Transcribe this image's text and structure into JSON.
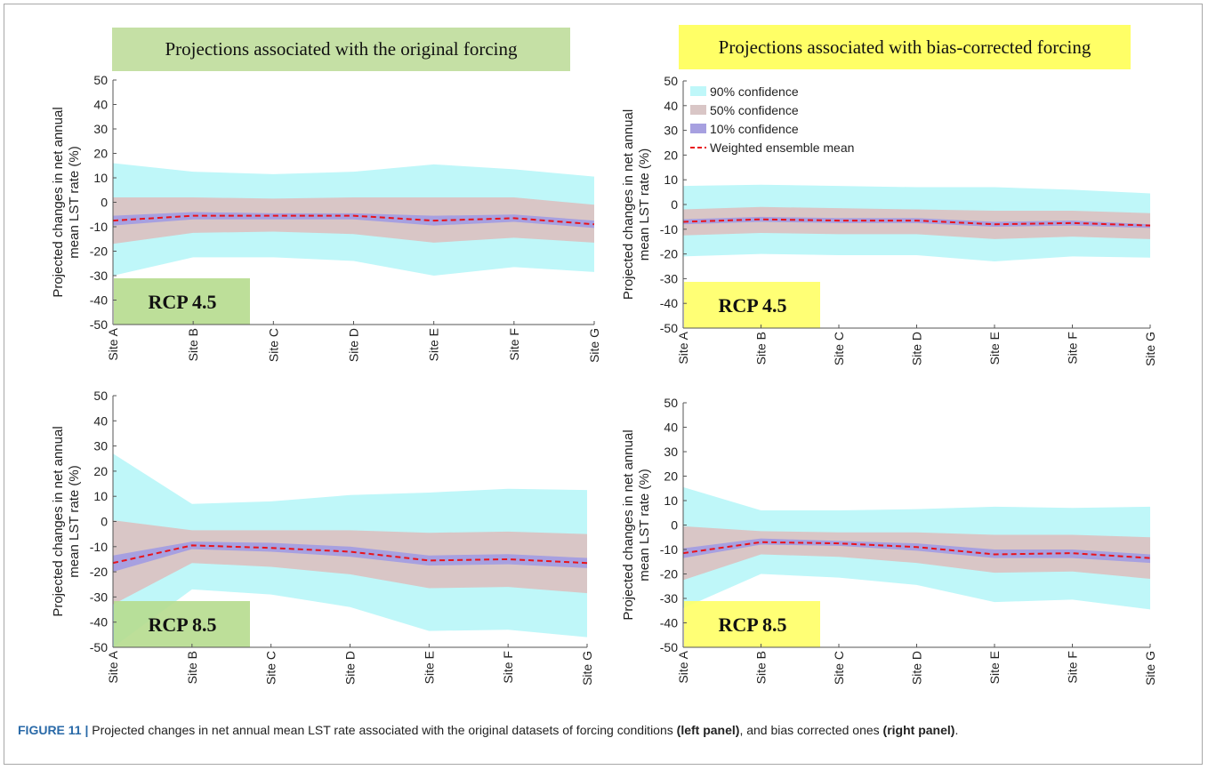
{
  "headers": {
    "left": "Projections associated with the original forcing",
    "right": "Projections associated with bias-corrected forcing"
  },
  "ylabel_line1": "Projected changes in net annual",
  "ylabel_line2": "mean LST rate (%)",
  "colors": {
    "c90": "#bff7f9",
    "c50": "#d9c6c6",
    "c10": "#a7a0e0",
    "mean": "#e8141c",
    "rcp_left": "#b6db8e",
    "rcp_right": "#ffff66"
  },
  "legend": [
    "90% confidence",
    "50% confidence",
    "10% confidence",
    "Weighted ensemble mean"
  ],
  "chart_data": [
    {
      "id": "tl",
      "type": "area",
      "rcp_label": "RCP 4.5",
      "rcp_color": "rcp_left",
      "categories": [
        "Site A",
        "Site B",
        "Site C",
        "Site D",
        "Site E",
        "Site F",
        "Site G"
      ],
      "ylim": [
        -50,
        50
      ],
      "yticks": [
        -50,
        -40,
        -30,
        -20,
        -10,
        0,
        10,
        20,
        30,
        40,
        50
      ],
      "band90": {
        "upper": [
          16,
          12.5,
          11.5,
          12.5,
          15.5,
          13.5,
          10.5
        ],
        "lower": [
          -30,
          -22.5,
          -22.5,
          -24,
          -30,
          -26.5,
          -28.5
        ]
      },
      "band50": {
        "upper": [
          2,
          2,
          1.5,
          2,
          2,
          2,
          -1
        ],
        "lower": [
          -17,
          -12.5,
          -12,
          -13,
          -16.5,
          -14.5,
          -16.5
        ]
      },
      "band10": {
        "upper": [
          -5.5,
          -4,
          -4.5,
          -4.5,
          -5.5,
          -5,
          -7.5
        ],
        "lower": [
          -9.5,
          -7,
          -7,
          -7,
          -9.5,
          -8,
          -10.5
        ]
      },
      "mean": [
        -7.5,
        -5.5,
        -5.5,
        -5.5,
        -7.5,
        -6.5,
        -9
      ]
    },
    {
      "id": "tr",
      "type": "area",
      "rcp_label": "RCP 4.5",
      "rcp_color": "rcp_right",
      "show_legend": true,
      "categories": [
        "Site A",
        "Site B",
        "Site C",
        "Site D",
        "Site E",
        "Site F",
        "Site G"
      ],
      "ylim": [
        -50,
        50
      ],
      "yticks": [
        -50,
        -40,
        -30,
        -20,
        -10,
        0,
        10,
        20,
        30,
        40,
        50
      ],
      "band90": {
        "upper": [
          7.5,
          8,
          7.5,
          7,
          7,
          6,
          4.5
        ],
        "lower": [
          -21,
          -20,
          -20.5,
          -20.5,
          -23,
          -21,
          -21.5
        ]
      },
      "band50": {
        "upper": [
          -2,
          -1,
          -1.5,
          -2,
          -2.5,
          -2.5,
          -3.5
        ],
        "lower": [
          -12.5,
          -11.5,
          -12,
          -12,
          -14,
          -13,
          -14
        ]
      },
      "band10": {
        "upper": [
          -6,
          -5,
          -5.5,
          -5.5,
          -7,
          -6.5,
          -8
        ],
        "lower": [
          -8,
          -7,
          -7.5,
          -7.5,
          -9,
          -8.5,
          -9.5
        ]
      },
      "mean": [
        -7,
        -6,
        -6.5,
        -6.5,
        -8,
        -7.5,
        -8.5
      ]
    },
    {
      "id": "bl",
      "type": "area",
      "rcp_label": "RCP 8.5",
      "rcp_color": "rcp_left",
      "categories": [
        "Site A",
        "Site B",
        "Site C",
        "Site D",
        "Site E",
        "Site F",
        "Site G"
      ],
      "ylim": [
        -50,
        50
      ],
      "yticks": [
        -50,
        -40,
        -30,
        -20,
        -10,
        0,
        10,
        20,
        30,
        40,
        50
      ],
      "band90": {
        "upper": [
          27,
          7,
          8,
          10.5,
          11.5,
          13,
          12.5
        ],
        "lower": [
          -51,
          -27,
          -29,
          -34,
          -43.5,
          -43,
          -46
        ]
      },
      "band50": {
        "upper": [
          0.5,
          -3.5,
          -3.5,
          -3.5,
          -4.5,
          -4,
          -5
        ],
        "lower": [
          -33,
          -16.5,
          -18,
          -21,
          -26.5,
          -26,
          -28.5
        ]
      },
      "band10": {
        "upper": [
          -13.5,
          -8,
          -8.5,
          -10,
          -13.5,
          -13,
          -14.5
        ],
        "lower": [
          -20,
          -11,
          -12,
          -14,
          -17.5,
          -17,
          -18.5
        ]
      },
      "mean": [
        -16.5,
        -9.5,
        -10.5,
        -12,
        -15.5,
        -15,
        -16.5
      ]
    },
    {
      "id": "br",
      "type": "area",
      "rcp_label": "RCP 8.5",
      "rcp_color": "rcp_right",
      "categories": [
        "Site A",
        "Site B",
        "Site C",
        "Site D",
        "Site E",
        "Site F",
        "Site G"
      ],
      "ylim": [
        -50,
        50
      ],
      "yticks": [
        -50,
        -40,
        -30,
        -20,
        -10,
        0,
        10,
        20,
        30,
        40,
        50
      ],
      "band90": {
        "upper": [
          15.5,
          6,
          6,
          6.5,
          7.5,
          7,
          7.5
        ],
        "lower": [
          -34,
          -20,
          -21.5,
          -24.5,
          -31.5,
          -30.5,
          -34.5
        ]
      },
      "band50": {
        "upper": [
          -0.5,
          -2.5,
          -3,
          -3,
          -4,
          -4,
          -5
        ],
        "lower": [
          -22.5,
          -12,
          -13,
          -15.5,
          -19.5,
          -19,
          -22
        ]
      },
      "band10": {
        "upper": [
          -9.5,
          -5.5,
          -6.5,
          -7.5,
          -10,
          -10,
          -12
        ],
        "lower": [
          -13.5,
          -8,
          -8.5,
          -10.5,
          -13.5,
          -13.5,
          -15.5
        ]
      },
      "mean": [
        -11.5,
        -7,
        -7.5,
        -9,
        -12,
        -11.5,
        -13.5
      ]
    }
  ],
  "caption": {
    "label": "FIGURE 11 |",
    "text_1": " Projected changes in net annual mean LST rate associated with the original datasets of forcing conditions ",
    "bold_1": "(left panel)",
    "text_2": ", and bias corrected ones ",
    "bold_2": "(right panel)",
    "text_3": "."
  }
}
